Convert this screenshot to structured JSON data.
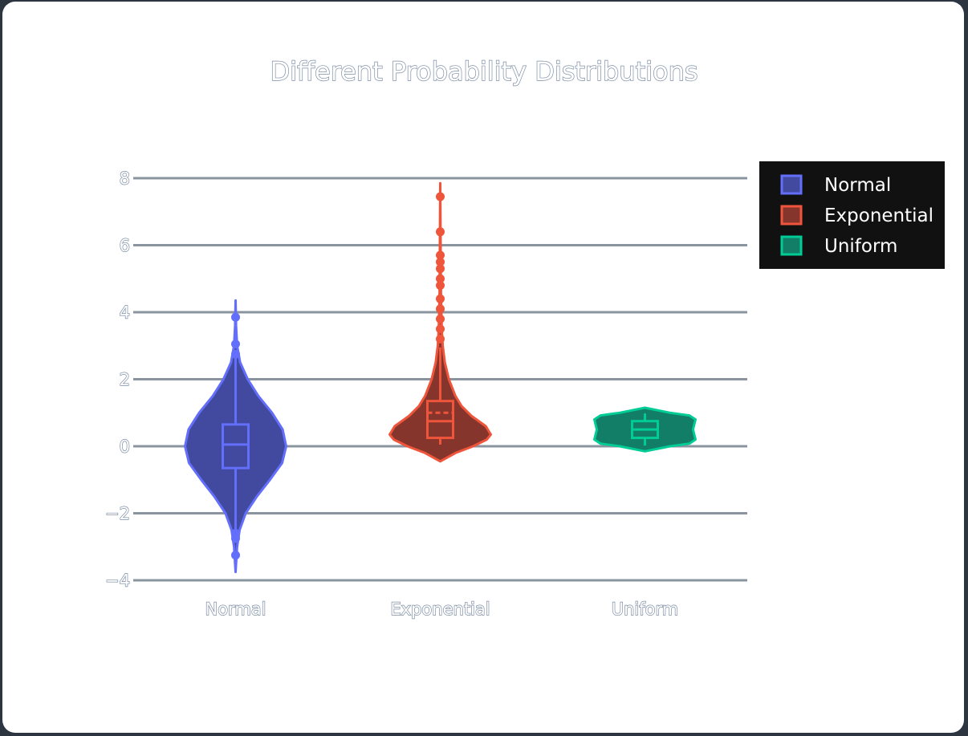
{
  "chart_data": {
    "type": "violin",
    "title": "Different Probability Distributions",
    "xlabel": "",
    "ylabel": "",
    "ylim": [
      -4,
      9
    ],
    "yticks": [
      -4,
      -2,
      0,
      2,
      4,
      6,
      8
    ],
    "ytick_labels": [
      "−4",
      "−2",
      "0",
      "2",
      "4",
      "6",
      "8"
    ],
    "grid": true,
    "legend_position": "top-right",
    "categories": [
      "Normal",
      "Exponential",
      "Uniform"
    ],
    "series": [
      {
        "name": "Normal",
        "color": "#636efa",
        "fill": "#414a9f",
        "min": -3.75,
        "q1": -0.65,
        "median": 0.05,
        "q3": 0.65,
        "max": 4.35,
        "whisker_low": -2.55,
        "whisker_high": 2.65,
        "outliers": [
          -3.25,
          -2.75,
          -2.6,
          2.75,
          3.05,
          3.85
        ],
        "density": [
          [
            -3.75,
            0.0
          ],
          [
            -3.0,
            0.03
          ],
          [
            -2.5,
            0.08
          ],
          [
            -2.0,
            0.2
          ],
          [
            -1.5,
            0.42
          ],
          [
            -1.0,
            0.68
          ],
          [
            -0.5,
            0.92
          ],
          [
            0.0,
            1.0
          ],
          [
            0.5,
            0.93
          ],
          [
            1.0,
            0.72
          ],
          [
            1.5,
            0.45
          ],
          [
            2.0,
            0.24
          ],
          [
            2.5,
            0.09
          ],
          [
            3.0,
            0.03
          ],
          [
            3.6,
            0.01
          ],
          [
            4.35,
            0.0
          ]
        ]
      },
      {
        "name": "Exponential",
        "color": "#ef553b",
        "fill": "#85352c",
        "min": -0.45,
        "q1": 0.25,
        "median": 0.75,
        "mean": 1.0,
        "q3": 1.35,
        "max": 7.85,
        "whisker_low": 0.05,
        "whisker_high": 2.95,
        "outliers": [
          3.2,
          3.5,
          3.8,
          4.1,
          4.4,
          4.8,
          5.0,
          5.3,
          5.5,
          5.7,
          6.4,
          7.45
        ],
        "density": [
          [
            -0.45,
            0.0
          ],
          [
            -0.2,
            0.3
          ],
          [
            0.0,
            0.65
          ],
          [
            0.2,
            0.92
          ],
          [
            0.35,
            1.0
          ],
          [
            0.6,
            0.9
          ],
          [
            0.9,
            0.62
          ],
          [
            1.2,
            0.42
          ],
          [
            1.5,
            0.3
          ],
          [
            2.0,
            0.17
          ],
          [
            2.5,
            0.09
          ],
          [
            3.0,
            0.05
          ],
          [
            3.5,
            0.03
          ],
          [
            4.5,
            0.015
          ],
          [
            6.0,
            0.008
          ],
          [
            7.85,
            0.0
          ]
        ]
      },
      {
        "name": "Uniform",
        "color": "#00cc96",
        "fill": "#127e68",
        "min": -0.15,
        "q1": 0.25,
        "median": 0.5,
        "q3": 0.75,
        "max": 1.15,
        "whisker_low": 0.02,
        "whisker_high": 0.98,
        "outliers": [],
        "density": [
          [
            -0.15,
            0.0
          ],
          [
            0.0,
            0.5
          ],
          [
            0.08,
            0.88
          ],
          [
            0.2,
            1.0
          ],
          [
            0.5,
            0.95
          ],
          [
            0.8,
            1.0
          ],
          [
            0.92,
            0.88
          ],
          [
            1.0,
            0.5
          ],
          [
            1.15,
            0.0
          ]
        ]
      }
    ]
  },
  "legend": {
    "items": [
      "Normal",
      "Exponential",
      "Uniform"
    ]
  }
}
